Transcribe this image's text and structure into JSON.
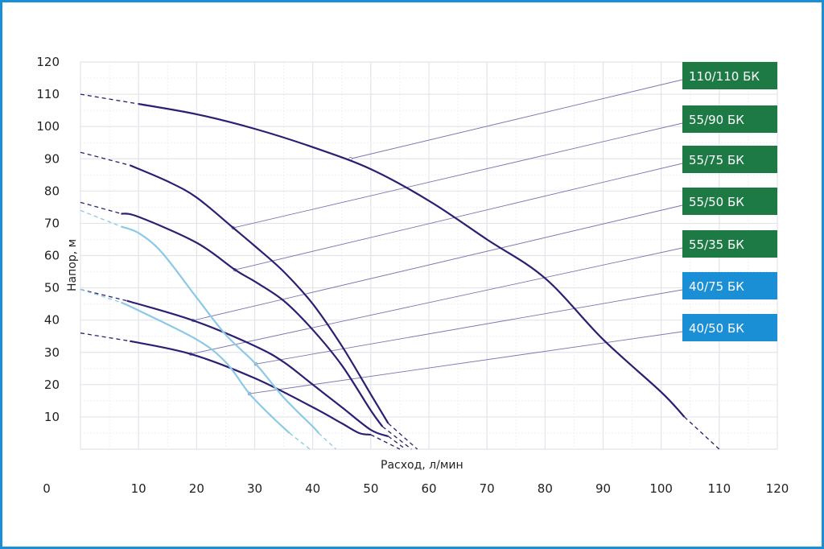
{
  "chart_data": {
    "type": "line",
    "xlabel": "Расход, л/мин",
    "ylabel": "Напор, м",
    "xlim": [
      0,
      120
    ],
    "ylim": [
      0,
      120
    ],
    "x_ticks": [
      "0",
      "10",
      "20",
      "30",
      "40",
      "50",
      "60",
      "70",
      "80",
      "90",
      "100",
      "110",
      "120"
    ],
    "y_ticks": [
      "10",
      "20",
      "30",
      "40",
      "50",
      "60",
      "70",
      "80",
      "90",
      "100",
      "110",
      "120"
    ],
    "grid": true,
    "colors": {
      "dark_curve": "#2b1f73",
      "light_curve": "#8cc9e6",
      "green_label": "#1e7a45",
      "blue_label": "#1a8fd6",
      "frame": "#1a8fd6"
    },
    "series": [
      {
        "name": "110/110 БК",
        "color": "dark",
        "label_color": "green",
        "marker": [
          46.5,
          90
        ],
        "dashed_start": [
          [
            0,
            110
          ],
          [
            10,
            107
          ]
        ],
        "solid": [
          [
            10,
            107
          ],
          [
            20,
            103.8
          ],
          [
            30,
            99.3
          ],
          [
            40,
            93.6
          ],
          [
            50,
            86.8
          ],
          [
            60,
            77
          ],
          [
            70,
            65
          ],
          [
            80,
            53
          ],
          [
            90,
            34
          ],
          [
            100,
            17.7
          ],
          [
            104,
            10
          ]
        ],
        "dashed_end": [
          [
            104,
            10
          ],
          [
            110,
            0
          ]
        ]
      },
      {
        "name": "55/90 БК",
        "color": "dark",
        "label_color": "green",
        "marker": [
          26.3,
          68.6
        ],
        "dashed_start": [
          [
            0,
            92
          ],
          [
            8.5,
            88
          ]
        ],
        "solid": [
          [
            8.5,
            88
          ],
          [
            15,
            83
          ],
          [
            20,
            78
          ],
          [
            26.3,
            68.6
          ],
          [
            30,
            63
          ],
          [
            35,
            55
          ],
          [
            40,
            45
          ],
          [
            45,
            32
          ],
          [
            50,
            17
          ],
          [
            53,
            8
          ]
        ],
        "dashed_end": [
          [
            53,
            8
          ],
          [
            58,
            0
          ]
        ]
      },
      {
        "name": "55/75 БК",
        "color": "dark",
        "label_color": "green",
        "marker": [
          26.6,
          55.6
        ],
        "dashed_start": [
          [
            0,
            76.5
          ],
          [
            7,
            73
          ]
        ],
        "solid": [
          [
            7,
            73
          ],
          [
            10,
            72
          ],
          [
            20,
            64
          ],
          [
            26.6,
            55.6
          ],
          [
            30,
            52
          ],
          [
            35,
            46
          ],
          [
            40,
            37
          ],
          [
            45,
            26
          ],
          [
            50,
            12
          ],
          [
            52,
            7
          ]
        ],
        "dashed_end": [
          [
            52,
            7
          ],
          [
            57,
            0
          ]
        ]
      },
      {
        "name": "55/50 БК",
        "color": "dark",
        "label_color": "green",
        "marker": [
          19.4,
          39.9
        ],
        "dashed_start": [
          [
            0,
            49.5
          ],
          [
            8,
            46
          ]
        ],
        "solid": [
          [
            8,
            46
          ],
          [
            19.4,
            39.9
          ],
          [
            30,
            32
          ],
          [
            35,
            27
          ],
          [
            40,
            20
          ],
          [
            45,
            13
          ],
          [
            50,
            6
          ],
          [
            53,
            4
          ]
        ],
        "dashed_end": [
          [
            53,
            4
          ],
          [
            56,
            0
          ]
        ]
      },
      {
        "name": "55/35 БК",
        "color": "dark",
        "label_color": "green",
        "marker": [
          19,
          29.5
        ],
        "dashed_start": [
          [
            0,
            36
          ],
          [
            8.5,
            33.5
          ]
        ],
        "solid": [
          [
            8.5,
            33.5
          ],
          [
            19,
            29.5
          ],
          [
            30,
            22
          ],
          [
            40,
            13
          ],
          [
            45,
            8
          ],
          [
            48,
            5
          ],
          [
            50,
            4.5
          ]
        ],
        "dashed_end": [
          [
            50,
            4.5
          ],
          [
            55,
            0
          ]
        ]
      },
      {
        "name": "40/75 БК",
        "color": "light",
        "label_color": "blue",
        "marker": [
          30.2,
          26.4
        ],
        "dashed_start": [
          [
            0,
            74
          ],
          [
            7,
            69
          ]
        ],
        "solid": [
          [
            7,
            69
          ],
          [
            10,
            67
          ],
          [
            14,
            61
          ],
          [
            20,
            47
          ],
          [
            25,
            35.5
          ],
          [
            30.2,
            26.4
          ],
          [
            35,
            16
          ],
          [
            40,
            7
          ],
          [
            41,
            5
          ]
        ],
        "dashed_end": [
          [
            41,
            5
          ],
          [
            44,
            0
          ]
        ]
      },
      {
        "name": "40/50 БК",
        "color": "light",
        "label_color": "blue",
        "marker": [
          29.1,
          17.2
        ],
        "dashed_start": [
          [
            0,
            49.5
          ],
          [
            7,
            45.5
          ]
        ],
        "solid": [
          [
            7,
            45.5
          ],
          [
            10,
            43
          ],
          [
            20,
            34
          ],
          [
            25,
            27
          ],
          [
            29.1,
            17.2
          ],
          [
            33,
            10
          ],
          [
            36,
            5
          ]
        ],
        "dashed_end": [
          [
            36,
            5
          ],
          [
            39.5,
            0
          ]
        ]
      }
    ]
  }
}
